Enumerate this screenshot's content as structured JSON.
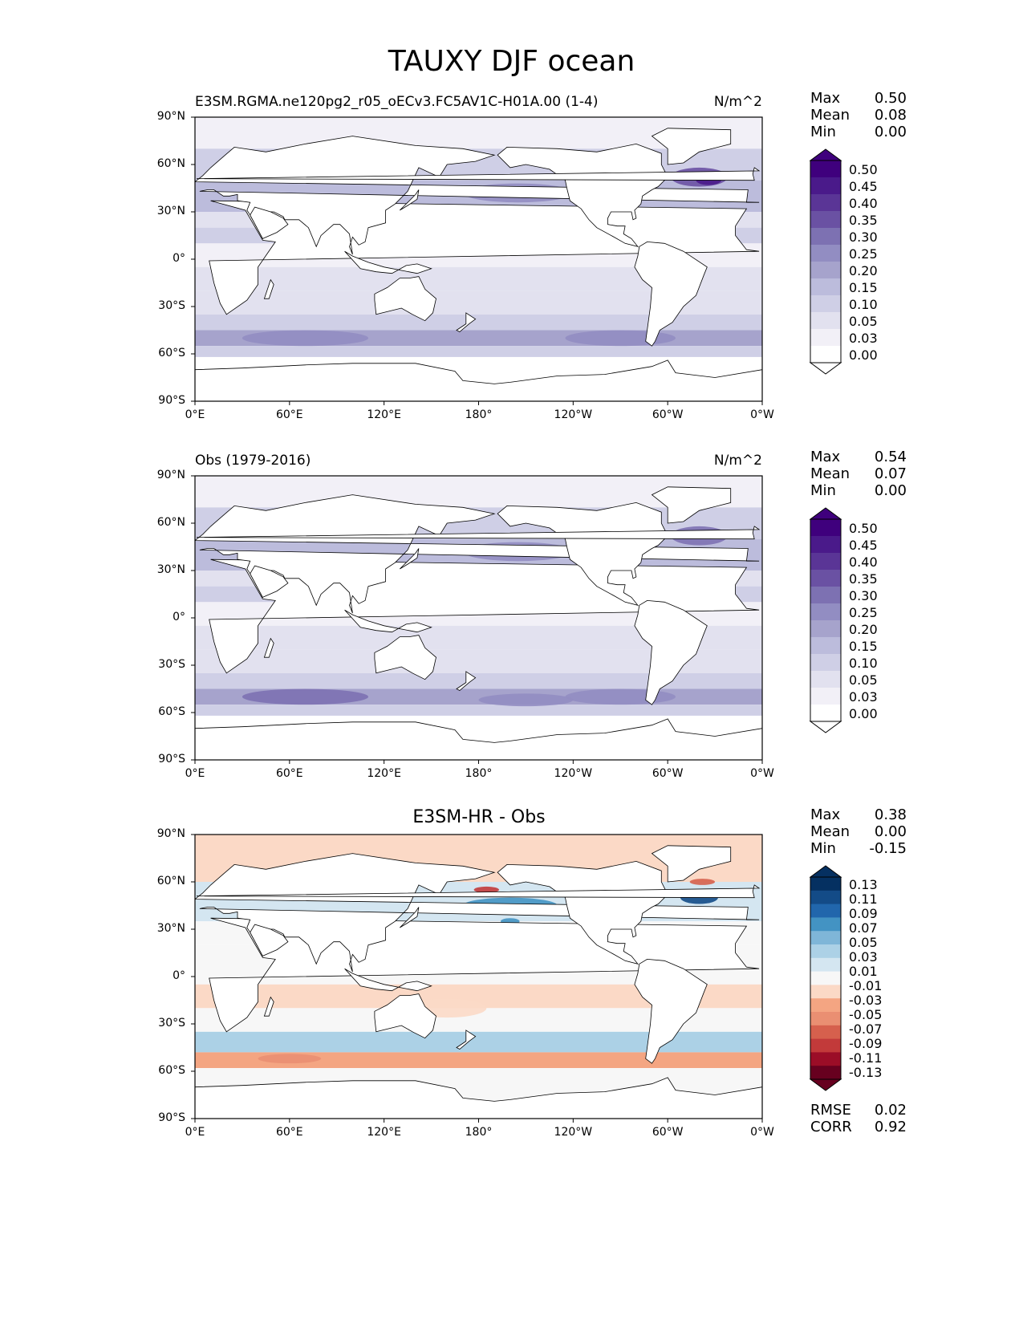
{
  "title": "TAUXY DJF ocean",
  "x_ticks": [
    "0°E",
    "60°E",
    "120°E",
    "180°",
    "120°W",
    "60°W",
    "0°W"
  ],
  "y_ticks": [
    "90°N",
    "60°N",
    "30°N",
    "0°",
    "30°S",
    "60°S",
    "90°S"
  ],
  "panels": [
    {
      "title": "E3SM.RGMA.ne120pg2_r05_oECv3.FC5AV1C-H01A.00 (1-4)",
      "units": "N/m^2",
      "stats": {
        "labels": [
          "Max",
          "Mean",
          "Min"
        ],
        "values": [
          "0.50",
          "0.08",
          "0.00"
        ]
      },
      "colorbar": {
        "levels": [
          "0.50",
          "0.45",
          "0.40",
          "0.35",
          "0.30",
          "0.25",
          "0.20",
          "0.15",
          "0.10",
          "0.05",
          "0.03",
          "0.00"
        ]
      }
    },
    {
      "title": "Obs (1979-2016)",
      "units": "N/m^2",
      "stats": {
        "labels": [
          "Max",
          "Mean",
          "Min"
        ],
        "values": [
          "0.54",
          "0.07",
          "0.00"
        ]
      },
      "colorbar": {
        "levels": [
          "0.50",
          "0.45",
          "0.40",
          "0.35",
          "0.30",
          "0.25",
          "0.20",
          "0.15",
          "0.10",
          "0.05",
          "0.03",
          "0.00"
        ]
      }
    },
    {
      "title": "E3SM-HR - Obs",
      "units": "",
      "stats": {
        "labels": [
          "Max",
          "Mean",
          "Min"
        ],
        "values": [
          "0.38",
          "0.00",
          "-0.15"
        ]
      },
      "colorbar": {
        "levels": [
          "0.13",
          "0.11",
          "0.09",
          "0.07",
          "0.05",
          "0.03",
          "0.01",
          "-0.01",
          "-0.03",
          "-0.05",
          "-0.07",
          "-0.09",
          "-0.11",
          "-0.13"
        ]
      },
      "metrics": {
        "labels": [
          "RMSE",
          "CORR"
        ],
        "values": [
          "0.02",
          "0.92"
        ]
      }
    }
  ],
  "colors": {
    "purple_scale": [
      "#ffffff",
      "#f2f0f7",
      "#e2e1ef",
      "#cfcfe6",
      "#bcbcdc",
      "#a6a3cc",
      "#928dc2",
      "#7d71b2",
      "#6a51a3",
      "#5a3596",
      "#4a1a8a",
      "#3f007d"
    ],
    "diverging_scale": [
      "#67001f",
      "#9b0d27",
      "#c23a3a",
      "#d6604d",
      "#ea8f72",
      "#f4a582",
      "#fbd9c6",
      "#f7f7f7",
      "#d4e6f1",
      "#acd1e6",
      "#7fb6d8",
      "#4393c3",
      "#2166ac",
      "#134b87",
      "#053061"
    ],
    "land": "#ffffff",
    "coast": "#000000"
  }
}
